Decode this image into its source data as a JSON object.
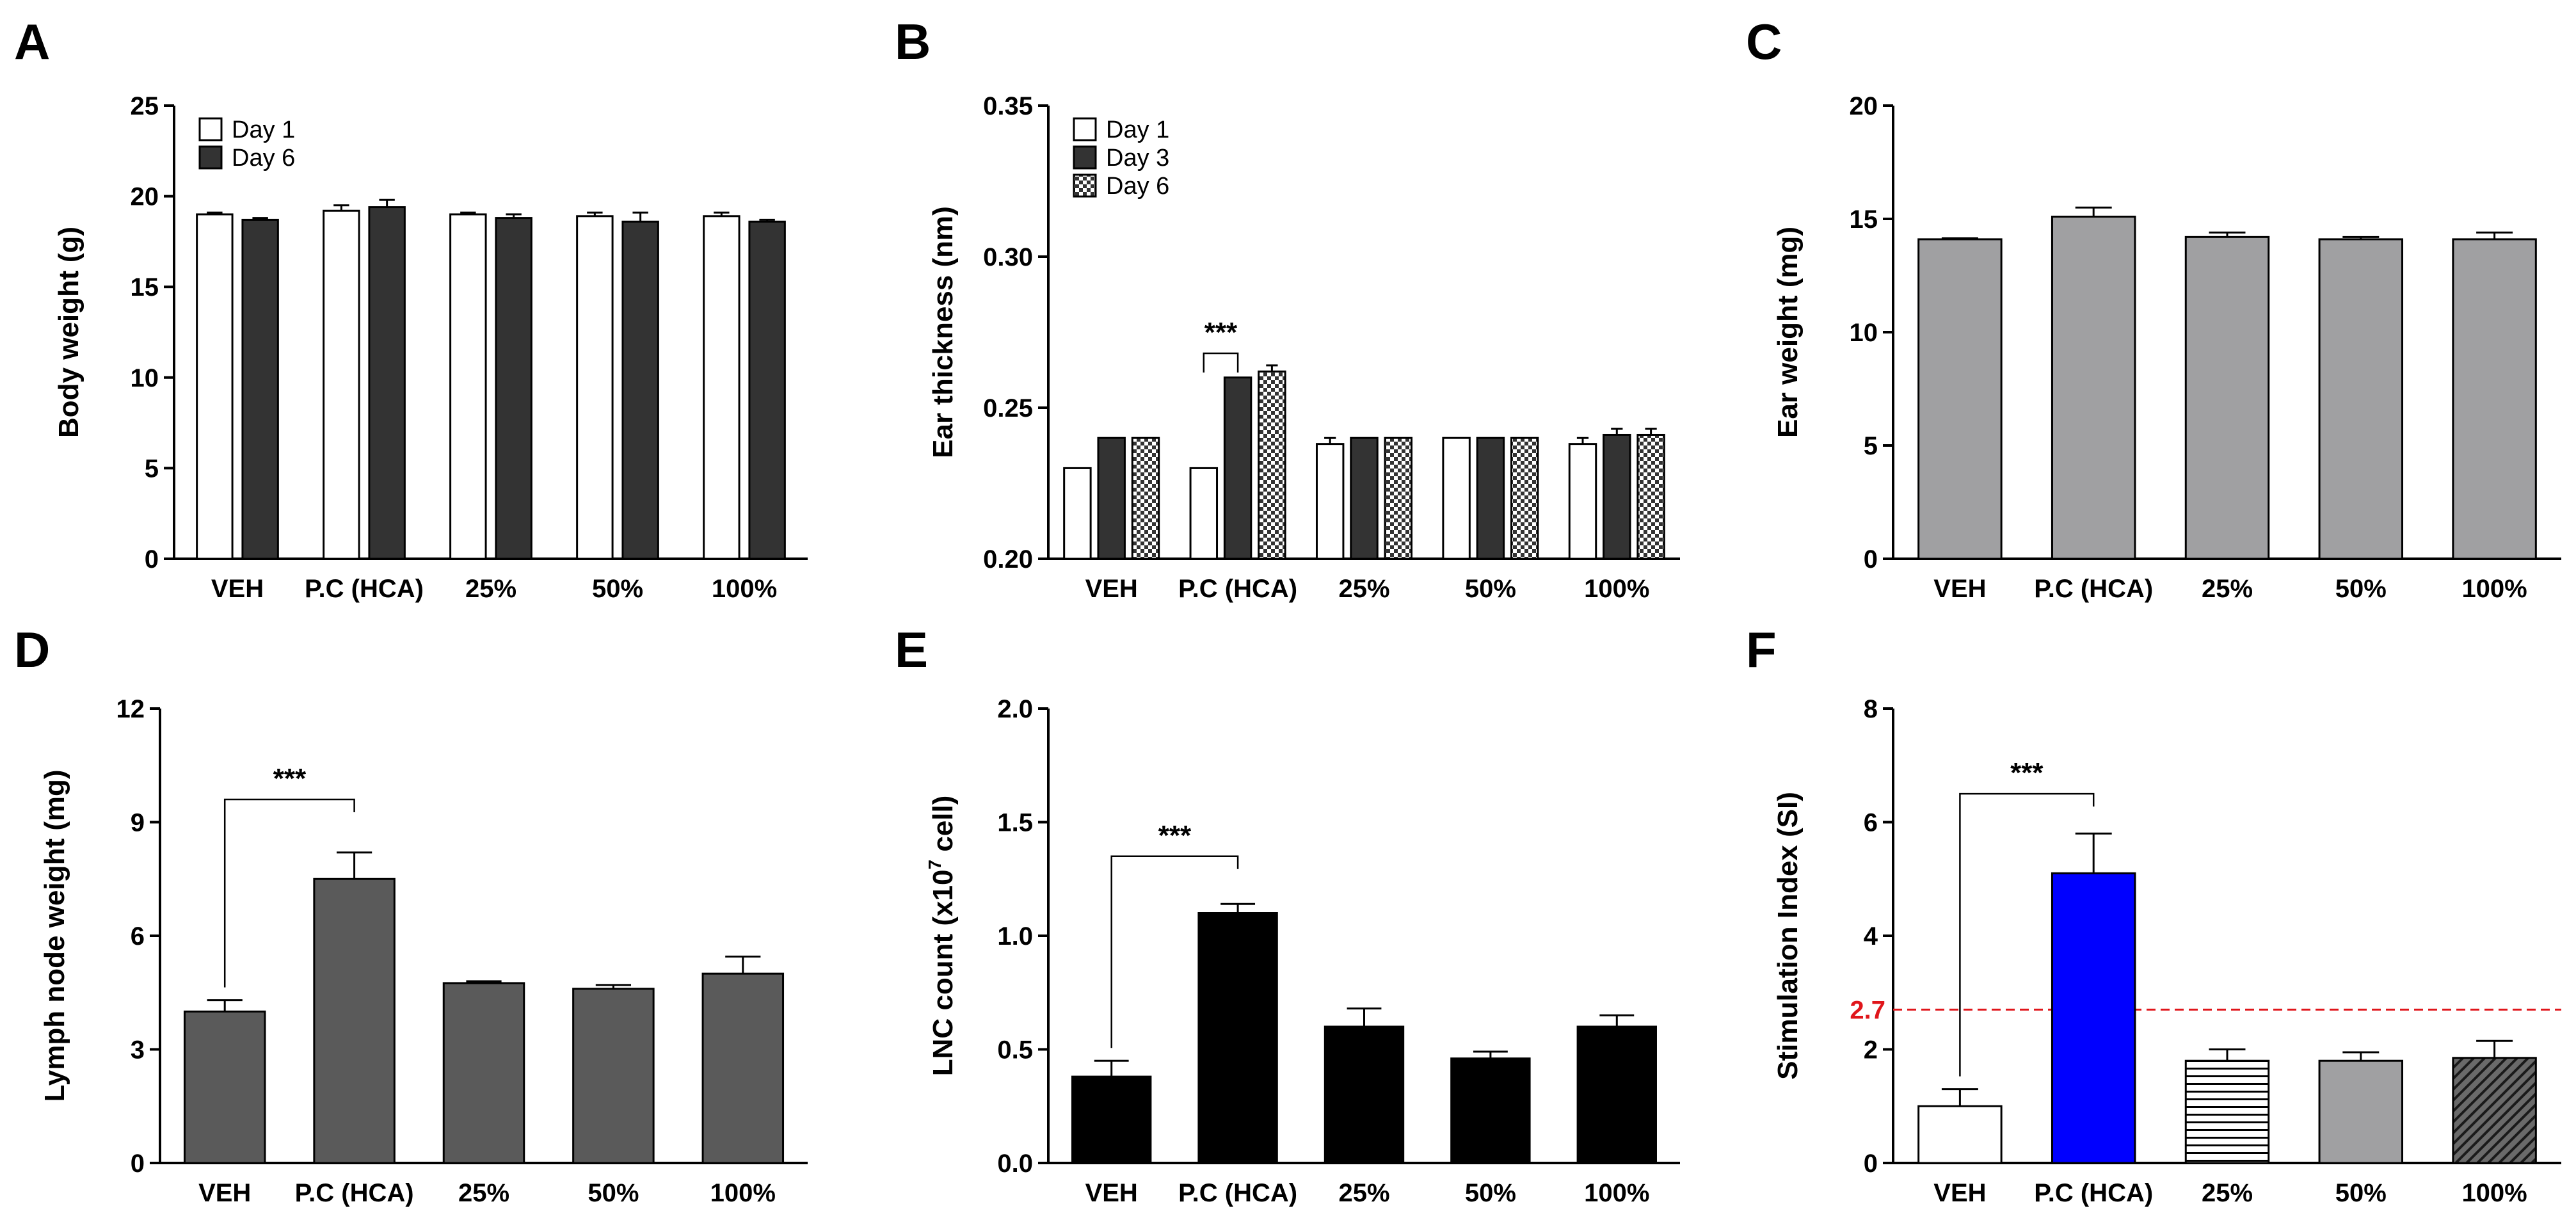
{
  "colors": {
    "white": "#ffffff",
    "black": "#000000",
    "dark": "#333333",
    "lymph": "#5a5a5a",
    "gray": "#a0a0a2",
    "blue": "#0000ff",
    "red": "#e0161b"
  },
  "chart_data": [
    {
      "id": "A",
      "panel_label": "A",
      "type": "bar",
      "title": "",
      "xlabel": "",
      "ylabel": "Body weight (g)",
      "categories": [
        "VEH",
        "P.C (HCA)",
        "25%",
        "50%",
        "100%"
      ],
      "ylim": [
        0,
        25
      ],
      "yticks": [
        0,
        5,
        10,
        15,
        20,
        25
      ],
      "ytick_labels": [
        "0",
        "5",
        "10",
        "15",
        "20",
        "25"
      ],
      "legend": "top-left",
      "series": [
        {
          "name": "Day 1",
          "fill": "white",
          "values": [
            19.0,
            19.2,
            19.0,
            18.9,
            18.9
          ],
          "errors": [
            0.1,
            0.3,
            0.1,
            0.2,
            0.2
          ]
        },
        {
          "name": "Day 6",
          "fill": "dark",
          "values": [
            18.7,
            19.4,
            18.8,
            18.6,
            18.6
          ],
          "errors": [
            0.1,
            0.4,
            0.2,
            0.5,
            0.1
          ]
        }
      ],
      "annotations": []
    },
    {
      "id": "B",
      "panel_label": "B",
      "type": "bar",
      "title": "",
      "xlabel": "",
      "ylabel": "Ear thickness (nm)",
      "categories": [
        "VEH",
        "P.C (HCA)",
        "25%",
        "50%",
        "100%"
      ],
      "ylim": [
        0.2,
        0.35
      ],
      "yticks": [
        0.2,
        0.25,
        0.3,
        0.35
      ],
      "ytick_labels": [
        "0.20",
        "0.25",
        "0.30",
        "0.35"
      ],
      "legend": "top-left",
      "series": [
        {
          "name": "Day 1",
          "fill": "white",
          "values": [
            0.23,
            0.23,
            0.238,
            0.24,
            0.238
          ],
          "errors": [
            0,
            0,
            0.002,
            0,
            0.002
          ]
        },
        {
          "name": "Day 3",
          "fill": "dark",
          "values": [
            0.24,
            0.26,
            0.24,
            0.24,
            0.241
          ],
          "errors": [
            0,
            0,
            0,
            0,
            0.002
          ]
        },
        {
          "name": "Day 6",
          "fill": "checker",
          "values": [
            0.24,
            0.262,
            0.24,
            0.24,
            0.241
          ],
          "errors": [
            0,
            0.002,
            0,
            0,
            0.002
          ]
        }
      ],
      "annotations": [
        {
          "text": "***",
          "from": [
            1,
            0
          ],
          "to": [
            1,
            1
          ],
          "y": 0.268
        }
      ]
    },
    {
      "id": "C",
      "panel_label": "C",
      "type": "bar",
      "title": "",
      "xlabel": "",
      "ylabel": "Ear weight (mg)",
      "categories": [
        "VEH",
        "P.C (HCA)",
        "25%",
        "50%",
        "100%"
      ],
      "ylim": [
        0,
        20
      ],
      "yticks": [
        0,
        5,
        10,
        15,
        20
      ],
      "ytick_labels": [
        "0",
        "5",
        "10",
        "15",
        "20"
      ],
      "legend": "none",
      "series": [
        {
          "name": "Ear weight",
          "fill": "gray",
          "values": [
            14.1,
            15.1,
            14.2,
            14.1,
            14.1
          ],
          "errors": [
            0.05,
            0.4,
            0.2,
            0.1,
            0.3
          ]
        }
      ],
      "annotations": []
    },
    {
      "id": "D",
      "panel_label": "D",
      "type": "bar",
      "title": "",
      "xlabel": "",
      "ylabel": "Lymph node weight (mg)",
      "categories": [
        "VEH",
        "P.C (HCA)",
        "25%",
        "50%",
        "100%"
      ],
      "ylim": [
        0,
        12
      ],
      "yticks": [
        0,
        3,
        6,
        9,
        12
      ],
      "ytick_labels": [
        "0",
        "3",
        "6",
        "9",
        "12"
      ],
      "legend": "none",
      "series": [
        {
          "name": "Lymph node weight",
          "fill": "lymph",
          "values": [
            4.0,
            7.5,
            4.75,
            4.6,
            5.0
          ],
          "errors": [
            0.3,
            0.7,
            0.05,
            0.1,
            0.45
          ]
        }
      ],
      "annotations": [
        {
          "text": "***",
          "from": [
            0,
            0
          ],
          "to": [
            1,
            0
          ],
          "y": 9.6
        }
      ]
    },
    {
      "id": "E",
      "panel_label": "E",
      "type": "bar",
      "title": "",
      "xlabel": "",
      "ylabel": "LNC count (x10",
      "ylabel_sup": "7",
      "ylabel_tail": " cell)",
      "categories": [
        "VEH",
        "P.C (HCA)",
        "25%",
        "50%",
        "100%"
      ],
      "ylim": [
        0,
        2.0
      ],
      "yticks": [
        0,
        0.5,
        1.0,
        1.5,
        2.0
      ],
      "ytick_labels": [
        "0.0",
        "0.5",
        "1.0",
        "1.5",
        "2.0"
      ],
      "legend": "none",
      "series": [
        {
          "name": "LNC count",
          "fill": "black",
          "values": [
            0.38,
            1.1,
            0.6,
            0.46,
            0.6
          ],
          "errors": [
            0.07,
            0.04,
            0.08,
            0.03,
            0.05
          ]
        }
      ],
      "annotations": [
        {
          "text": "***",
          "from": [
            0,
            0
          ],
          "to": [
            1,
            0
          ],
          "y": 1.35
        }
      ]
    },
    {
      "id": "F",
      "panel_label": "F",
      "type": "bar",
      "title": "",
      "xlabel": "",
      "ylabel": "Stimulation Index (SI)",
      "categories": [
        "VEH",
        "P.C (HCA)",
        "25%",
        "50%",
        "100%"
      ],
      "ylim": [
        0,
        8
      ],
      "yticks": [
        0,
        2,
        4,
        6,
        8
      ],
      "ytick_labels": [
        "0",
        "2",
        "4",
        "6",
        "8"
      ],
      "legend": "none",
      "threshold": {
        "value": 2.7,
        "label": "2.7"
      },
      "series": [
        {
          "name": "SI",
          "fills": [
            "white",
            "blue",
            "hlines",
            "gray",
            "diag"
          ],
          "values": [
            1.0,
            5.1,
            1.8,
            1.8,
            1.85
          ],
          "errors": [
            0.3,
            0.7,
            0.2,
            0.15,
            0.3
          ]
        }
      ],
      "annotations": [
        {
          "text": "***",
          "from": [
            0,
            0
          ],
          "to": [
            1,
            0
          ],
          "y": 6.5
        }
      ]
    }
  ]
}
